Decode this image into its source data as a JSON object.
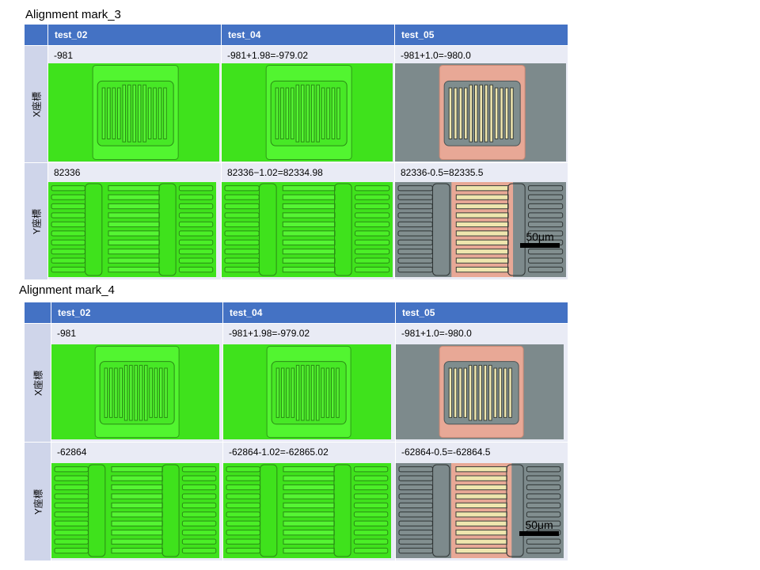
{
  "sections": [
    {
      "title": "Alignment mark_3",
      "headers": [
        "test_02",
        "test_04",
        "test_05"
      ],
      "row_x_label": "X座標",
      "row_y_label": "Y座標",
      "x_values": [
        "-981",
        "-981+1.98=-979.02",
        "-981+1.0=-980.0"
      ],
      "y_values": [
        "82336",
        "82336−1.02=82334.98",
        "82336-0.5=82335.5"
      ],
      "scale_label": "50μm"
    },
    {
      "title": "Alignment mark_4",
      "headers": [
        "test_02",
        "test_04",
        "test_05"
      ],
      "row_x_label": "X座標",
      "row_y_label": "Y座標",
      "x_values": [
        "-981",
        "-981+1.98=-979.02",
        "-981+1.0=-980.0"
      ],
      "y_values": [
        "-62864",
        "-62864-1.02=-62865.02",
        "-62864-0.5=-62864.5"
      ],
      "scale_label": "50μm"
    }
  ],
  "colors": {
    "header_bg": "#4472c4",
    "row_label_bg": "#cfd5ea",
    "cell_bg": "#e9ebf5",
    "green_field": "#3fe21c",
    "gray_field": "#7d8a8c",
    "pink_field": "#e8a896",
    "cream_bar": "#efe6ae"
  }
}
